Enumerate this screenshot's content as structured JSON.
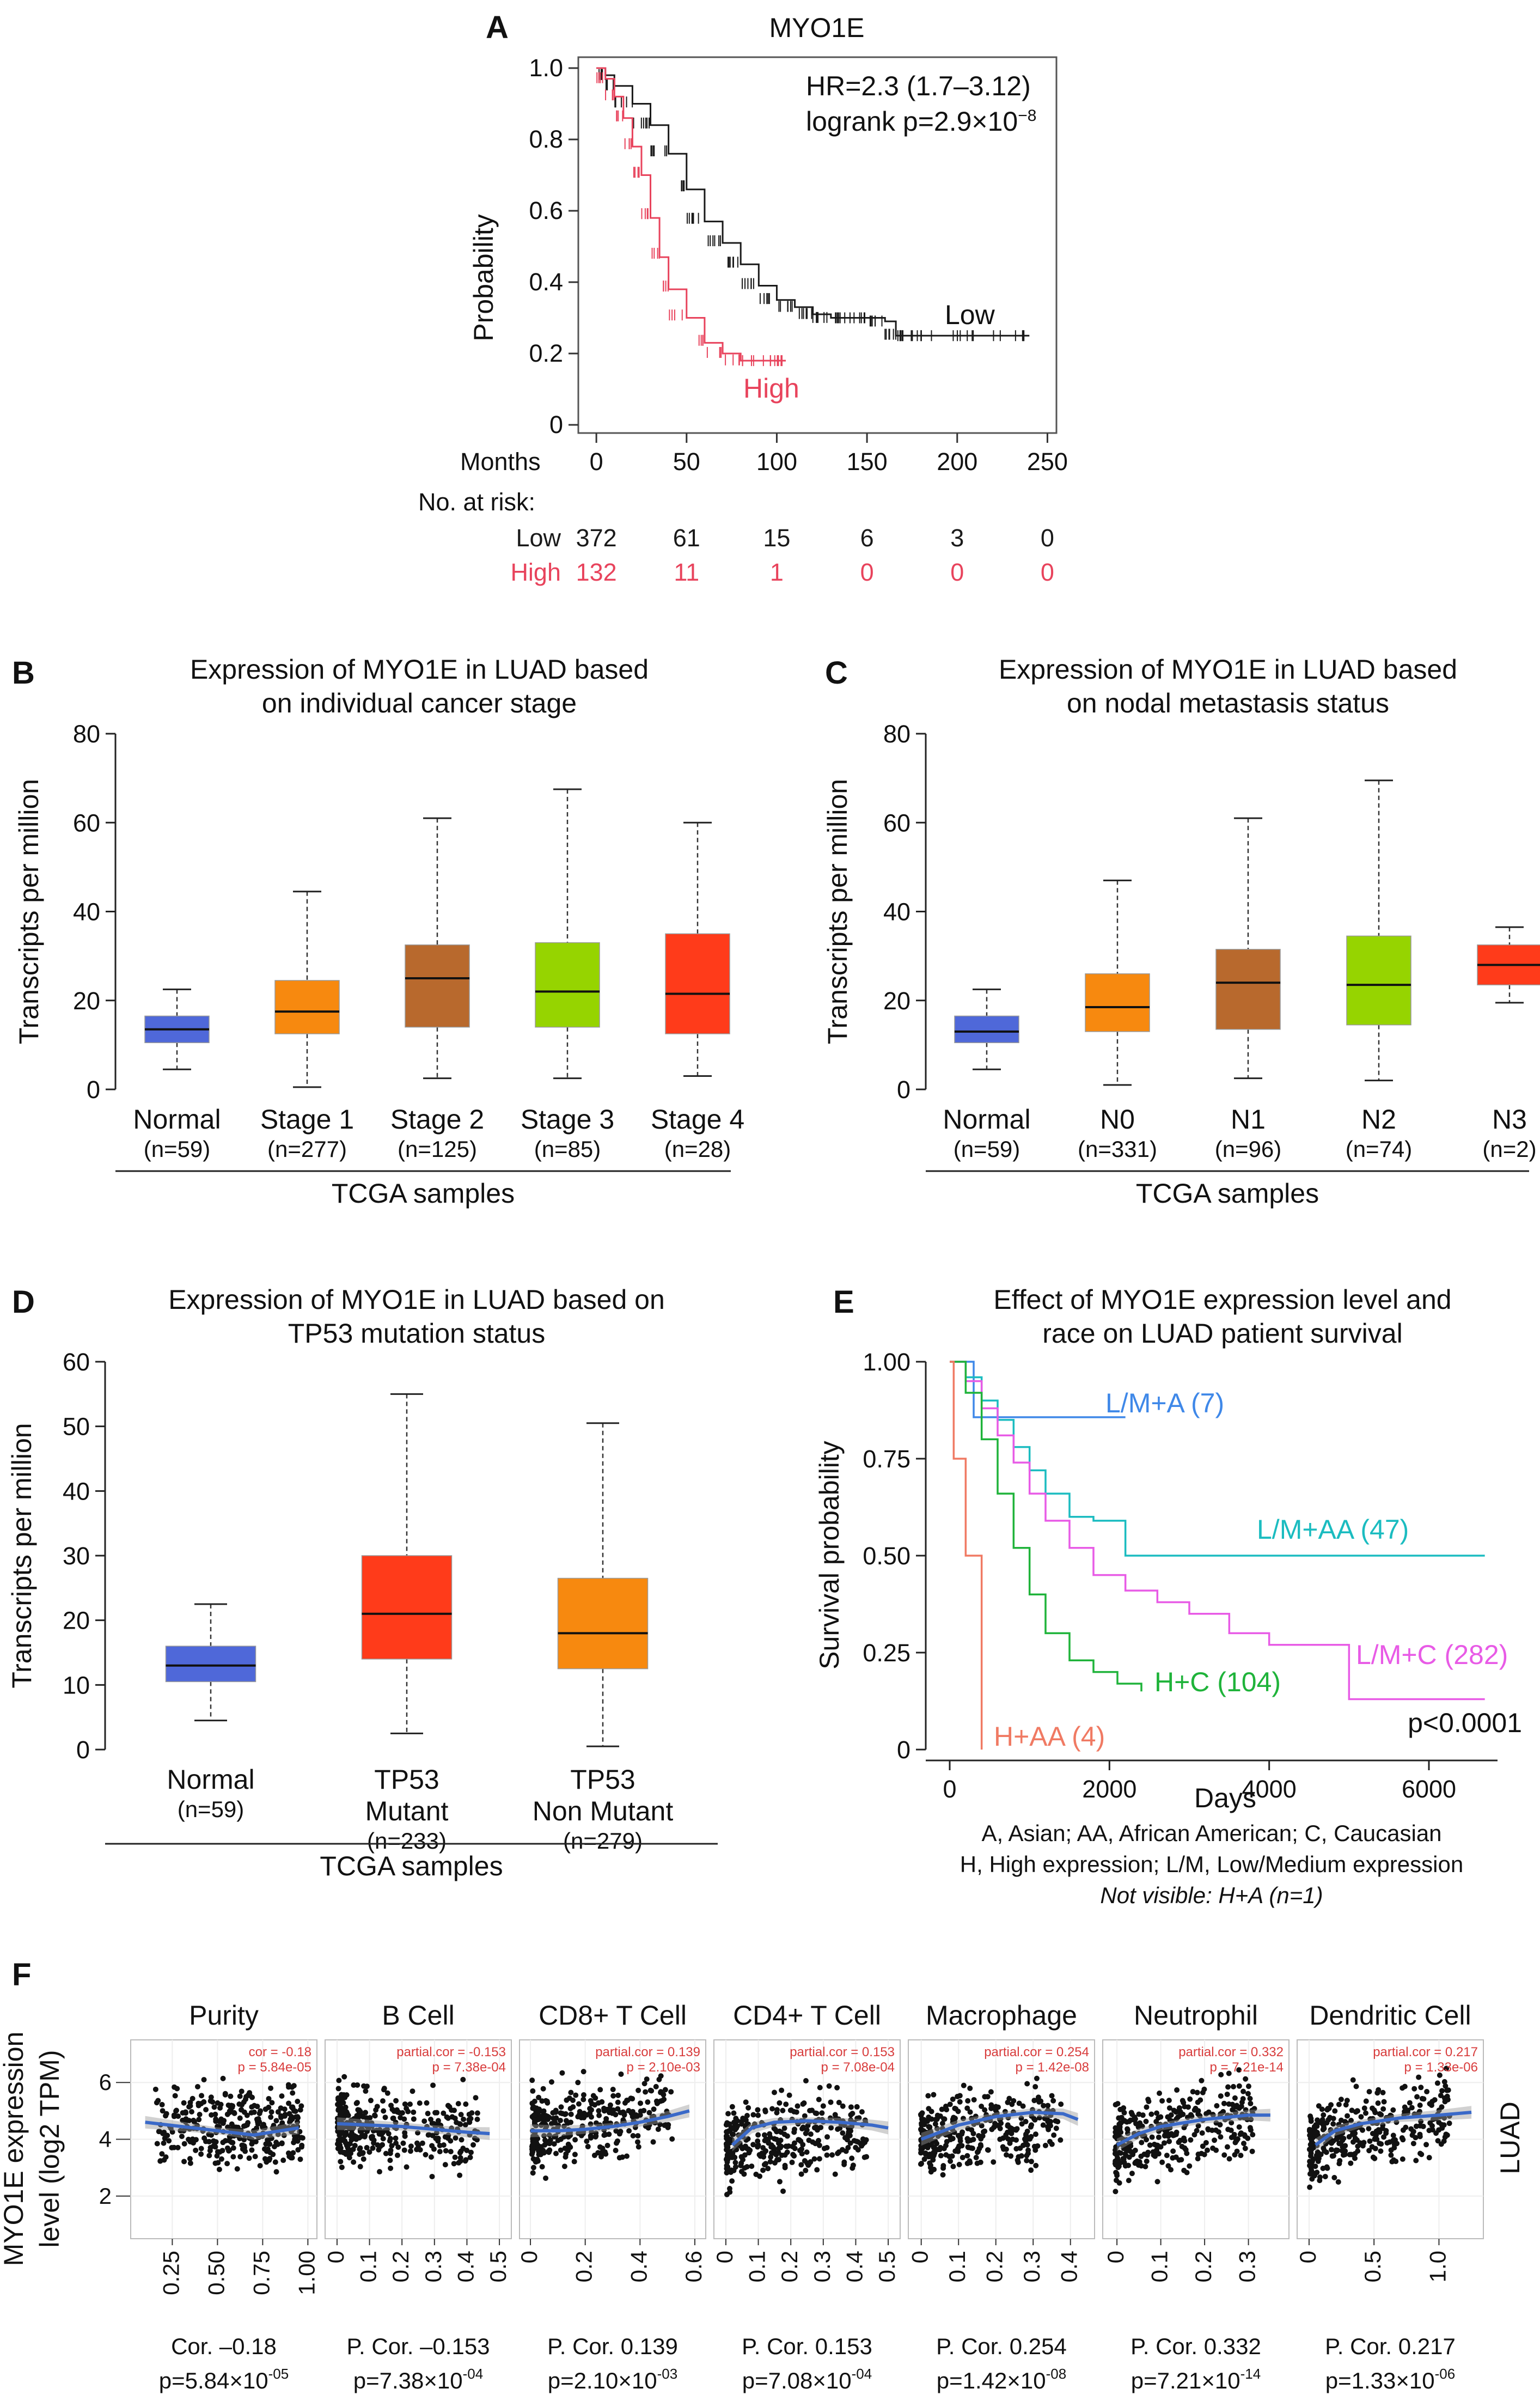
{
  "colors": {
    "low": "#1a1a1a",
    "high": "#e8435c",
    "normal": "#4f68d9",
    "stage1": "#f7890f",
    "stage2": "#b8692d",
    "stage3": "#96d400",
    "stage4": "#ff3b1a",
    "blue_lm_a": "#3f88e8",
    "cyan_lm_aa": "#1bbcc0",
    "green_hc": "#1fb33a",
    "magenta_lmc": "#e85be6",
    "salmon_haa": "#f07a63",
    "fit": "#3a69c8",
    "cor_text": "#d83c3c"
  },
  "panels": {
    "A": {
      "label": "A",
      "chart_data": {
        "type": "line",
        "title": "MYO1E",
        "hr_text": "HR=2.3 (1.7–3.12)",
        "logrank_text": "logrank p=2.9×10",
        "logrank_exp": "−8",
        "ylabel": "Probability",
        "xlabel": "Months",
        "xlim": [
          -10,
          255
        ],
        "ylim": [
          0,
          1
        ],
        "x_ticks": [
          0,
          50,
          100,
          150,
          200,
          250
        ],
        "y_ticks": [
          0,
          0.2,
          0.4,
          0.6,
          0.8,
          1.0
        ],
        "y_tick_labels": [
          "0",
          "0.2",
          "0.4",
          "0.6",
          "0.8",
          "1.0"
        ],
        "series": [
          {
            "name": "Low",
            "color_key": "low",
            "x": [
              0,
              5,
              10,
              20,
              30,
              40,
              50,
              60,
              70,
              80,
              90,
              100,
              110,
              120,
              130,
              140,
              150,
              160,
              166,
              170,
              190,
              210,
              240
            ],
            "y": [
              1.0,
              0.98,
              0.95,
              0.9,
              0.84,
              0.76,
              0.66,
              0.57,
              0.51,
              0.45,
              0.39,
              0.35,
              0.33,
              0.31,
              0.3,
              0.3,
              0.3,
              0.29,
              0.25,
              0.25,
              0.25,
              0.25,
              0.25
            ]
          },
          {
            "name": "High",
            "color_key": "high",
            "x": [
              0,
              5,
              10,
              15,
              20,
              25,
              30,
              35,
              40,
              50,
              60,
              70,
              80,
              90,
              100,
              105
            ],
            "y": [
              1.0,
              0.97,
              0.92,
              0.86,
              0.78,
              0.7,
              0.58,
              0.47,
              0.38,
              0.3,
              0.23,
              0.2,
              0.18,
              0.18,
              0.18,
              0.18
            ]
          }
        ],
        "risk_table": {
          "header": "No. at risk:",
          "rows": [
            {
              "name": "Low",
              "color_key": "low",
              "values": [
                "372",
                "61",
                "15",
                "6",
                "3",
                "0"
              ]
            },
            {
              "name": "High",
              "color_key": "high",
              "values": [
                "132",
                "11",
                "1",
                "0",
                "0",
                "0"
              ]
            }
          ]
        }
      }
    },
    "B": {
      "label": "B",
      "chart_data": {
        "type": "box",
        "title": [
          "Expression of MYO1E in LUAD based",
          "on individual cancer stage"
        ],
        "ylabel": "Transcripts per million",
        "xlabel": "TCGA samples",
        "ylim": [
          0,
          80
        ],
        "y_ticks": [
          0,
          20,
          40,
          60,
          80
        ],
        "groups": [
          {
            "name": "Normal",
            "n": "(n=59)",
            "color_key": "normal",
            "min": 4.5,
            "q1": 10.5,
            "median": 13.5,
            "q3": 16.5,
            "max": 22.5
          },
          {
            "name": "Stage 1",
            "n": "(n=277)",
            "color_key": "stage1",
            "min": 0.5,
            "q1": 12.5,
            "median": 17.5,
            "q3": 24.5,
            "max": 44.5
          },
          {
            "name": "Stage 2",
            "n": "(n=125)",
            "color_key": "stage2",
            "min": 2.5,
            "q1": 14,
            "median": 25,
            "q3": 32.5,
            "max": 61
          },
          {
            "name": "Stage 3",
            "n": "(n=85)",
            "color_key": "stage3",
            "min": 2.5,
            "q1": 14,
            "median": 22,
            "q3": 33,
            "max": 67.5
          },
          {
            "name": "Stage 4",
            "n": "(n=28)",
            "color_key": "stage4",
            "min": 3,
            "q1": 12.5,
            "median": 21.5,
            "q3": 35,
            "max": 60
          }
        ]
      }
    },
    "C": {
      "label": "C",
      "chart_data": {
        "type": "box",
        "title": [
          "Expression of MYO1E in LUAD based",
          "on nodal metastasis status"
        ],
        "ylabel": "Transcripts per million",
        "xlabel": "TCGA samples",
        "ylim": [
          0,
          80
        ],
        "y_ticks": [
          0,
          20,
          40,
          60,
          80
        ],
        "groups": [
          {
            "name": "Normal",
            "n": "(n=59)",
            "color_key": "normal",
            "min": 4.5,
            "q1": 10.5,
            "median": 13,
            "q3": 16.5,
            "max": 22.5
          },
          {
            "name": "N0",
            "n": "(n=331)",
            "color_key": "stage1",
            "min": 1,
            "q1": 13,
            "median": 18.5,
            "q3": 26,
            "max": 47
          },
          {
            "name": "N1",
            "n": "(n=96)",
            "color_key": "stage2",
            "min": 2.5,
            "q1": 13.5,
            "median": 24,
            "q3": 31.5,
            "max": 61
          },
          {
            "name": "N2",
            "n": "(n=74)",
            "color_key": "stage3",
            "min": 2,
            "q1": 14.5,
            "median": 23.5,
            "q3": 34.5,
            "max": 69.5
          },
          {
            "name": "N3",
            "n": "(n=2)",
            "color_key": "stage4",
            "min": 19.5,
            "q1": 23.5,
            "median": 28,
            "q3": 32.5,
            "max": 36.5
          }
        ]
      }
    },
    "D": {
      "label": "D",
      "chart_data": {
        "type": "box",
        "title": [
          "Expression of MYO1E in LUAD based on",
          "TP53 mutation status"
        ],
        "ylabel": "Transcripts per million",
        "xlabel": "TCGA samples",
        "ylim": [
          0,
          60
        ],
        "y_ticks": [
          0,
          10,
          20,
          30,
          40,
          50,
          60
        ],
        "groups": [
          {
            "name": "Normal",
            "name2": "",
            "n": "(n=59)",
            "color_key": "normal",
            "min": 4.5,
            "q1": 10.5,
            "median": 13,
            "q3": 16,
            "max": 22.5
          },
          {
            "name": "TP53",
            "name2": "Mutant",
            "n": "(n=233)",
            "color_key": "stage4",
            "min": 2.5,
            "q1": 14,
            "median": 21,
            "q3": 30,
            "max": 55
          },
          {
            "name": "TP53",
            "name2": "Non Mutant",
            "n": "(n=279)",
            "color_key": "stage1",
            "min": 0.5,
            "q1": 12.5,
            "median": 18,
            "q3": 26.5,
            "max": 50.5
          }
        ]
      }
    },
    "E": {
      "label": "E",
      "chart_data": {
        "type": "line",
        "title": [
          "Effect of MYO1E expression level and",
          "race on LUAD patient survival"
        ],
        "ylabel": "Survival probability",
        "xlabel": "Days",
        "xlim": [
          -300,
          7200
        ],
        "ylim": [
          0,
          1
        ],
        "x_ticks": [
          0,
          2000,
          4000,
          6000
        ],
        "y_ticks": [
          0,
          0.25,
          0.5,
          0.75,
          1.0
        ],
        "y_tick_labels": [
          "0",
          "0.25",
          "0.50",
          "0.75",
          "1.00"
        ],
        "pvalue": "p<0.0001",
        "series": [
          {
            "name": "L/M+A (7)",
            "color_key": "blue_lm_a",
            "x": [
              0,
              150,
              300,
              450,
              2200
            ],
            "y": [
              1.0,
              1.0,
              0.857,
              0.857,
              0.857
            ]
          },
          {
            "name": "L/M+AA (47)",
            "color_key": "cyan_lm_aa",
            "x": [
              0,
              200,
              400,
              600,
              800,
              1000,
              1200,
              1500,
              1800,
              2100,
              2200,
              6700
            ],
            "y": [
              1.0,
              0.96,
              0.9,
              0.85,
              0.78,
              0.72,
              0.66,
              0.6,
              0.59,
              0.59,
              0.5,
              0.5
            ]
          },
          {
            "name": "L/M+C (282)",
            "color_key": "magenta_lmc",
            "x": [
              0,
              200,
              400,
              600,
              800,
              1000,
              1200,
              1500,
              1800,
              2200,
              2600,
              3000,
              3500,
              4000,
              5000,
              6700
            ],
            "y": [
              1.0,
              0.95,
              0.88,
              0.81,
              0.74,
              0.66,
              0.59,
              0.52,
              0.45,
              0.41,
              0.38,
              0.35,
              0.3,
              0.27,
              0.13,
              0.13
            ]
          },
          {
            "name": "H+C (104)",
            "color_key": "green_hc",
            "x": [
              0,
              200,
              400,
              600,
              800,
              1000,
              1200,
              1500,
              1800,
              2100,
              2400
            ],
            "y": [
              1.0,
              0.92,
              0.8,
              0.66,
              0.52,
              0.4,
              0.3,
              0.23,
              0.2,
              0.17,
              0.15
            ]
          },
          {
            "name": "H+AA (4)",
            "color_key": "salmon_haa",
            "x": [
              0,
              50,
              200,
              400
            ],
            "y": [
              1.0,
              0.75,
              0.5,
              0.0
            ]
          }
        ],
        "footnotes": [
          "A, Asian; AA, African American; C, Caucasian",
          "H, High expression; L/M, Low/Medium expression"
        ],
        "footnote_italic": "Not visible: H+A (n=1)"
      }
    },
    "F": {
      "label": "F",
      "chart_data": {
        "type": "scatter",
        "ylabel": [
          "MYO1E expression",
          "level (log2 TPM)"
        ],
        "side_label": "LUAD",
        "ylim": [
          0.5,
          7.5
        ],
        "y_ticks": [
          2,
          4,
          6
        ],
        "panels": [
          {
            "name": "Purity",
            "xlim": [
              0.05,
              1.02
            ],
            "x_ticks": [
              0.25,
              0.5,
              0.75,
              1.0
            ],
            "x_tick_labels": [
              "0.25",
              "0.50",
              "0.75",
              "1.00"
            ],
            "cor_line1": "cor = -0.18",
            "cor_line2": "p = 5.84e-05",
            "fit_x": [
              0.1,
              0.3,
              0.5,
              0.7,
              0.95
            ],
            "fit_y": [
              4.6,
              4.45,
              4.3,
              4.15,
              4.4
            ],
            "stat1": "Cor. –0.18",
            "stat2_base": "p=5.84×10",
            "stat2_exp": "-05"
          },
          {
            "name": "B Cell",
            "xlim": [
              -0.02,
              0.52
            ],
            "x_ticks": [
              0,
              0.1,
              0.2,
              0.3,
              0.4,
              0.5
            ],
            "x_tick_labels": [
              "0",
              "0.1",
              "0.2",
              "0.3",
              "0.4",
              "0.5"
            ],
            "cor_line1": "partial.cor = -0.153",
            "cor_line2": "p = 7.38e-04",
            "fit_x": [
              0,
              0.1,
              0.2,
              0.3,
              0.4,
              0.47
            ],
            "fit_y": [
              4.55,
              4.5,
              4.45,
              4.35,
              4.25,
              4.2
            ],
            "stat1": "P. Cor. –0.153",
            "stat2_base": "p=7.38×10",
            "stat2_exp": "-04"
          },
          {
            "name": "CD8+ T Cell",
            "xlim": [
              -0.02,
              0.62
            ],
            "x_ticks": [
              0,
              0.2,
              0.4,
              0.6
            ],
            "x_tick_labels": [
              "0",
              "0.2",
              "0.4",
              "0.6"
            ],
            "cor_line1": "partial.cor = 0.139",
            "cor_line2": "p = 2.10e-03",
            "fit_x": [
              0,
              0.1,
              0.2,
              0.3,
              0.4,
              0.5,
              0.58
            ],
            "fit_y": [
              4.3,
              4.3,
              4.35,
              4.45,
              4.6,
              4.8,
              5.0
            ],
            "stat1": "P. Cor. 0.139",
            "stat2_base": "p=2.10×10",
            "stat2_exp": "-03"
          },
          {
            "name": "CD4+ T Cell",
            "xlim": [
              -0.02,
              0.52
            ],
            "x_ticks": [
              0,
              0.1,
              0.2,
              0.3,
              0.4,
              0.5
            ],
            "x_tick_labels": [
              "0",
              "0.1",
              "0.2",
              "0.3",
              "0.4",
              "0.5"
            ],
            "cor_line1": "partial.cor = 0.153",
            "cor_line2": "p = 7.08e-04",
            "fit_x": [
              0.02,
              0.08,
              0.15,
              0.25,
              0.35,
              0.45,
              0.5
            ],
            "fit_y": [
              3.8,
              4.4,
              4.6,
              4.65,
              4.6,
              4.5,
              4.4
            ],
            "stat1": "P. Cor. 0.153",
            "stat2_base": "p=7.08×10",
            "stat2_exp": "-04"
          },
          {
            "name": "Macrophage",
            "xlim": [
              -0.02,
              0.45
            ],
            "x_ticks": [
              0,
              0.1,
              0.2,
              0.3,
              0.4
            ],
            "x_tick_labels": [
              "0",
              "0.1",
              "0.2",
              "0.3",
              "0.4"
            ],
            "cor_line1": "partial.cor = 0.254",
            "cor_line2": "p = 1.42e-08",
            "fit_x": [
              0,
              0.1,
              0.2,
              0.3,
              0.38,
              0.42
            ],
            "fit_y": [
              4.0,
              4.5,
              4.8,
              4.95,
              4.9,
              4.7
            ],
            "stat1": "P. Cor. 0.254",
            "stat2_base": "p=1.42×10",
            "stat2_exp": "-08"
          },
          {
            "name": "Neutrophil",
            "xlim": [
              -0.02,
              0.38
            ],
            "x_ticks": [
              0,
              0.1,
              0.2,
              0.3
            ],
            "x_tick_labels": [
              "0",
              "0.1",
              "0.2",
              "0.3"
            ],
            "cor_line1": "partial.cor = 0.332",
            "cor_line2": "p = 7.21e-14",
            "fit_x": [
              0,
              0.05,
              0.1,
              0.2,
              0.3,
              0.35
            ],
            "fit_y": [
              3.8,
              4.2,
              4.45,
              4.7,
              4.85,
              4.85
            ],
            "stat1": "P. Cor. 0.332",
            "stat2_base": "p=7.21×10",
            "stat2_exp": "-14"
          },
          {
            "name": "Dendritic Cell",
            "xlim": [
              -0.05,
              1.3
            ],
            "x_ticks": [
              0,
              0.5,
              1.0
            ],
            "x_tick_labels": [
              "0",
              "0.5",
              "1.0"
            ],
            "cor_line1": "partial.cor = 0.217",
            "cor_line2": "p = 1.33e-06",
            "fit_x": [
              0.05,
              0.2,
              0.4,
              0.7,
              1.0,
              1.25
            ],
            "fit_y": [
              3.8,
              4.3,
              4.55,
              4.75,
              4.85,
              4.95
            ],
            "stat1": "P. Cor. 0.217",
            "stat2_base": "p=1.33×10",
            "stat2_exp": "-06"
          }
        ]
      }
    }
  }
}
